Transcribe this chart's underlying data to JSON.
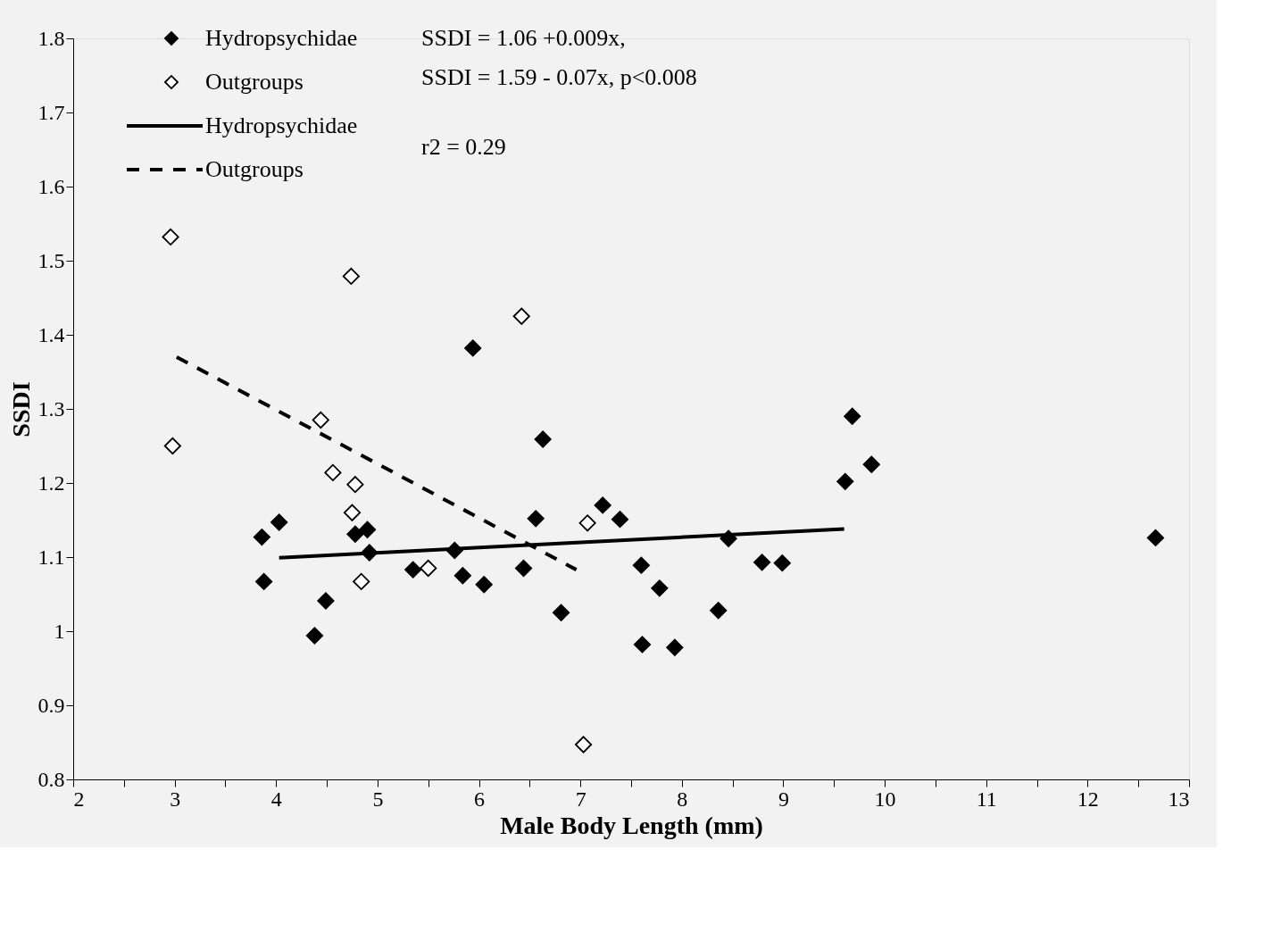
{
  "chart_data": {
    "type": "scatter",
    "xlabel": "Male Body Length (mm)",
    "ylabel": "SSDI",
    "xlim": [
      2,
      13
    ],
    "ylim": [
      0.8,
      1.8
    ],
    "xticks": [
      2,
      {
        "value": 2.5,
        "label": null
      },
      3,
      {
        "value": 3.5,
        "label": null
      },
      4,
      {
        "value": 4.5,
        "label": null
      },
      5,
      {
        "value": 5.5,
        "label": null
      },
      6,
      {
        "value": 6.5,
        "label": null
      },
      7,
      {
        "value": 7.5,
        "label": null
      },
      8,
      {
        "value": 8.5,
        "label": null
      },
      9,
      {
        "value": 9.5,
        "label": null
      },
      10,
      {
        "value": 10.5,
        "label": null
      },
      11,
      {
        "value": 11.5,
        "label": null
      },
      12,
      {
        "value": 12.5,
        "label": null
      },
      13
    ],
    "yticks": [
      0.8,
      0.9,
      1,
      1.1,
      1.2,
      1.3,
      1.4,
      1.5,
      1.6,
      1.7,
      1.8
    ],
    "grid": false,
    "legend": "top left",
    "annotations": [
      "SSDI = 1.06 +0.009x,",
      "SSDI = 1.59 - 0.07x, p<0.008",
      "r2 = 0.29"
    ],
    "series": [
      {
        "name": "Hydropsychidae",
        "marker": "diamond",
        "color": "#000000",
        "x": [
          3.86,
          3.88,
          4.03,
          4.38,
          4.49,
          4.78,
          4.9,
          4.92,
          5.35,
          5.76,
          5.84,
          5.94,
          6.05,
          6.44,
          6.56,
          6.63,
          6.81,
          7.22,
          7.39,
          7.6,
          7.61,
          7.78,
          7.93,
          8.36,
          8.46,
          8.79,
          8.99,
          9.61,
          9.68,
          9.87,
          12.67
        ],
        "values": [
          1.127,
          1.067,
          1.147,
          0.994,
          1.041,
          1.131,
          1.137,
          1.106,
          1.083,
          1.109,
          1.075,
          1.382,
          1.063,
          1.085,
          1.152,
          1.259,
          1.025,
          1.17,
          1.151,
          1.089,
          0.982,
          1.058,
          0.978,
          1.028,
          1.125,
          1.093,
          1.092,
          1.202,
          1.29,
          1.225,
          1.126
        ]
      },
      {
        "name": "Outgroups",
        "marker": "diamond",
        "color": "#000000",
        "x": [
          2.96,
          2.98,
          4.74,
          4.44,
          4.56,
          4.78,
          4.75,
          4.84,
          5.5,
          6.42,
          7.07,
          7.03
        ],
        "values": [
          1.532,
          1.25,
          1.479,
          1.285,
          1.214,
          1.198,
          1.16,
          1.067,
          1.085,
          1.425,
          1.146,
          0.847
        ]
      },
      {
        "name": "Hydropsychidae",
        "type": "line",
        "line_style": "solid",
        "color": "#000000",
        "x": [
          4.03,
          9.6
        ],
        "values": [
          1.099,
          1.138
        ]
      },
      {
        "name": "Outgroups",
        "type": "line",
        "line_style": "dashed",
        "color": "#000000",
        "x": [
          3.02,
          6.96
        ],
        "values": [
          1.37,
          1.083
        ]
      }
    ]
  }
}
